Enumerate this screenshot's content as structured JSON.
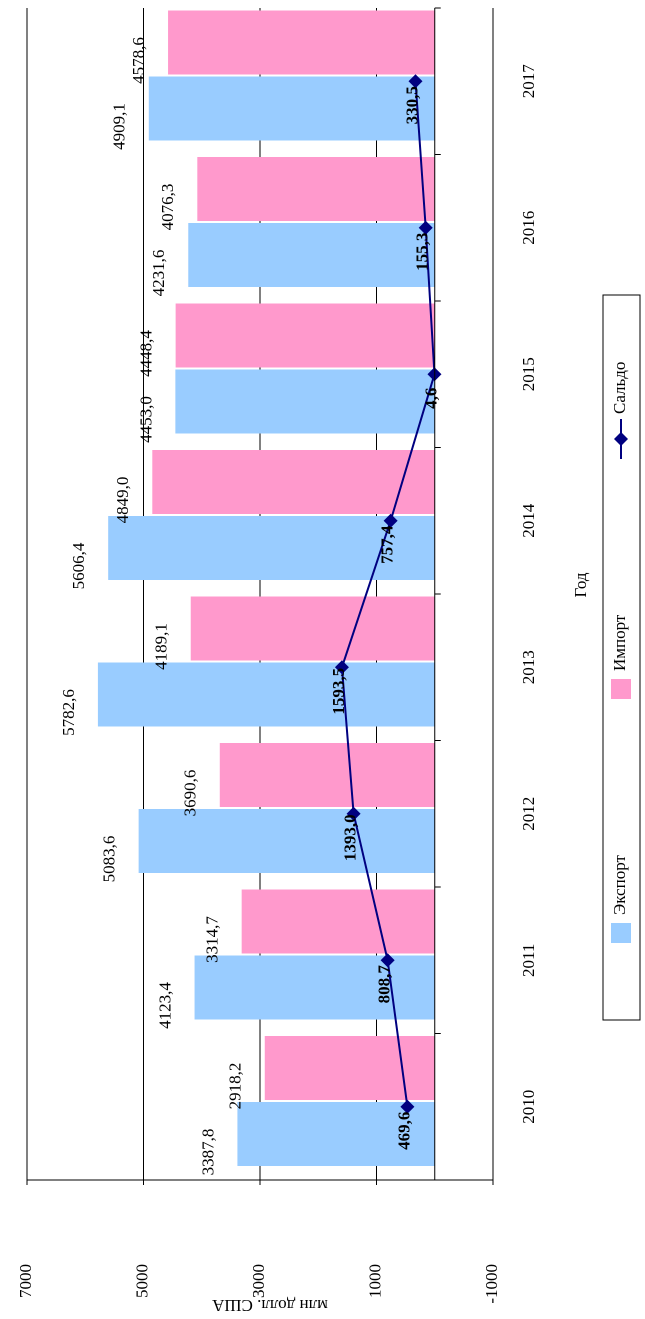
{
  "chart_data": {
    "type": "bar",
    "y_label": "млн долл. США",
    "x_label": "Год",
    "categories": [
      "2010",
      "2011",
      "2012",
      "2013",
      "2014",
      "2015",
      "2016",
      "2017"
    ],
    "series": [
      {
        "name": "Экспорт",
        "color": "#99ccff",
        "values": [
          3387.8,
          4123.4,
          5083.6,
          5782.6,
          5606.4,
          4453.0,
          4231.6,
          4909.1
        ],
        "value_labels": [
          "3387,8",
          "4123,4",
          "5083,6",
          "5782,6",
          "5606,4",
          "4453,0",
          "4231,6",
          "4909,1"
        ]
      },
      {
        "name": "Импорт",
        "color": "#ff99cc",
        "values": [
          2918.2,
          3314.7,
          3690.6,
          4189.1,
          4849.0,
          4448.4,
          4076.3,
          4578.6
        ],
        "value_labels": [
          "2918,2",
          "3314,7",
          "3690,6",
          "4189,1",
          "4849,0",
          "4448,4",
          "4076,3",
          "4578,6"
        ]
      },
      {
        "name": "Сальдо",
        "type": "line",
        "color": "#000080",
        "values": [
          469.6,
          808.7,
          1393.0,
          1593.5,
          757.4,
          4.6,
          155.3,
          330.5
        ],
        "value_labels": [
          "469,6",
          "808,7",
          "1393,0",
          "1593,5",
          "757,4",
          "4,6",
          "155,3",
          "330,5"
        ]
      }
    ],
    "ylim": [
      -1000,
      7000
    ],
    "yticks": [
      -1000,
      1000,
      3000,
      5000,
      7000
    ],
    "grid": true,
    "legend": "bottom"
  }
}
